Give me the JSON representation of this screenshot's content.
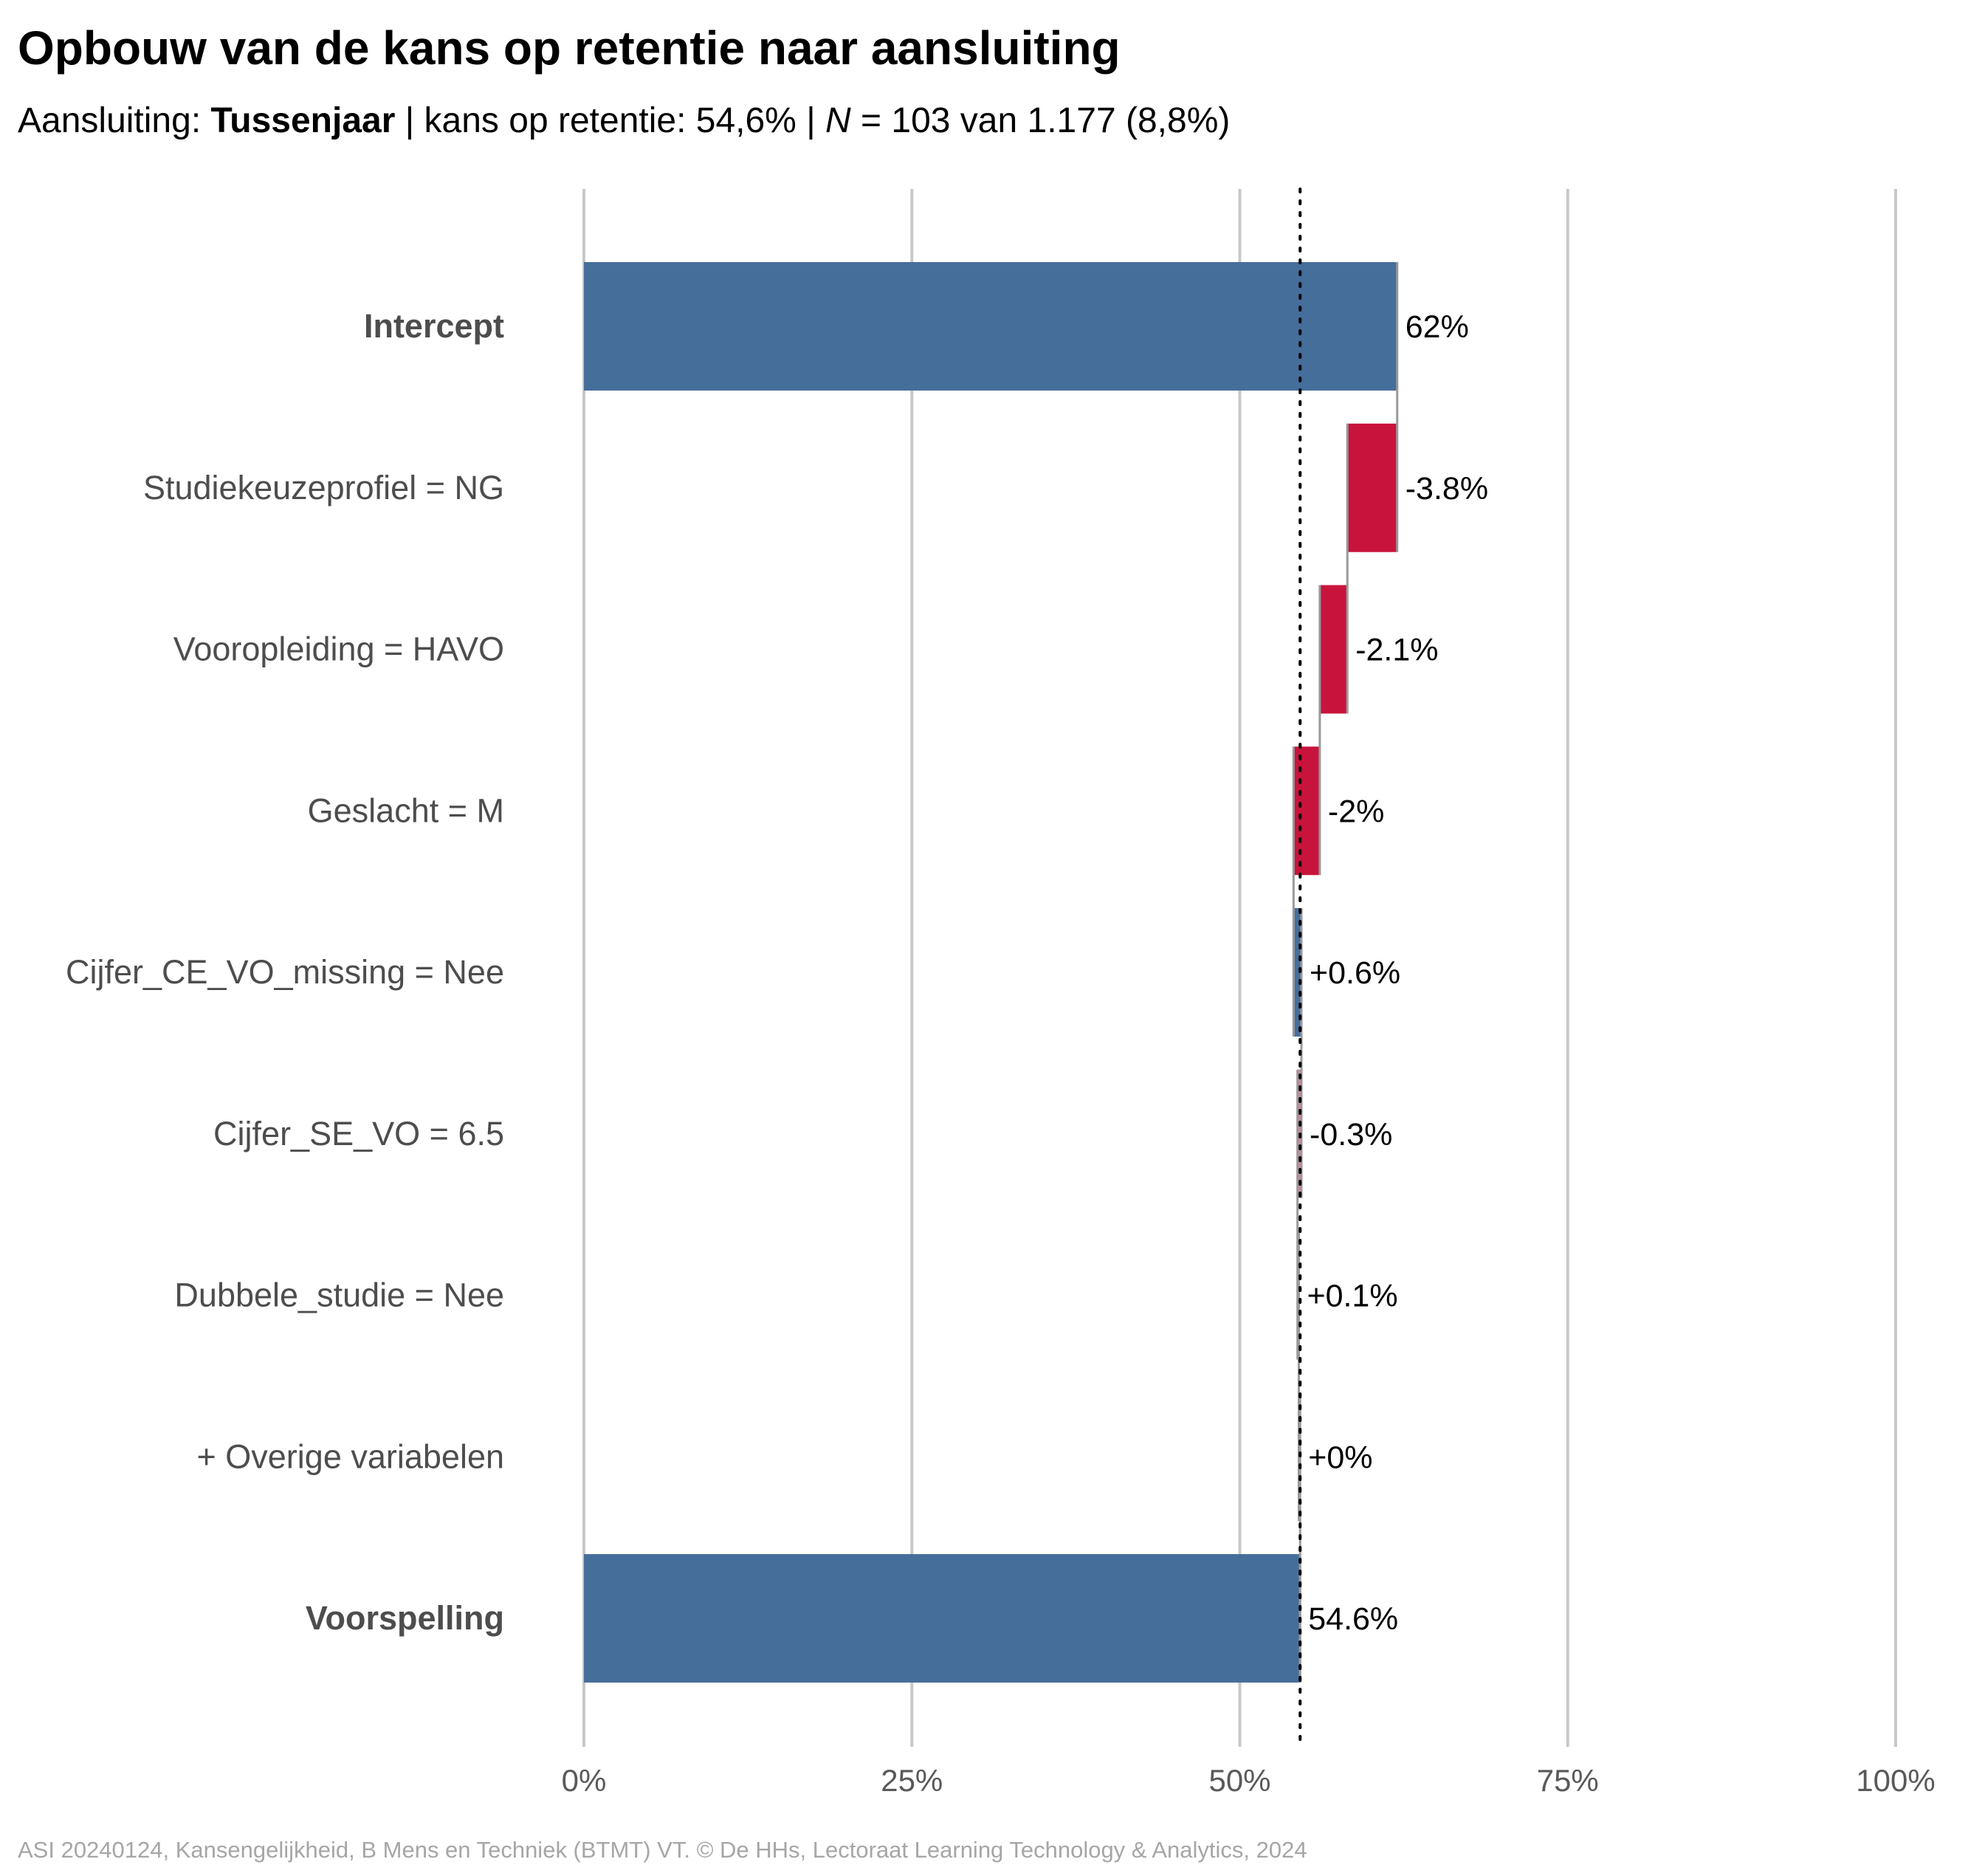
{
  "title": "Opbouw van de kans op retentie naar aansluiting",
  "subtitle": {
    "prefix": "Aansluiting: ",
    "group": "Tussenjaar",
    "mid": " | kans op retentie: 54,6% | ",
    "n_symbol": "N",
    "suffix": " = 103 van 1.177 (8,8%)"
  },
  "caption": "ASI 20240124, Kansengelijkheid, B Mens en Techniek (BTMT) VT. © De HHs, Lectoraat Learning Technology & Analytics, 2024",
  "colors": {
    "total": "#466E9B",
    "positive": "#466E9B",
    "negative": "#C8143C",
    "gridline": "#c8c8c8",
    "connector": "#999999",
    "label_text": "#4d4d4d",
    "tick_text": "#595959"
  },
  "chart_data": {
    "type": "bar",
    "subtype": "waterfall",
    "orientation": "horizontal",
    "xlim": [
      0,
      100
    ],
    "x_unit": "%",
    "ticks": [
      0,
      25,
      50,
      75,
      100
    ],
    "tick_labels": [
      "0%",
      "25%",
      "50%",
      "75%",
      "100%"
    ],
    "grid": true,
    "reference_line": {
      "value": 54.6,
      "style": "dotted"
    },
    "steps": [
      {
        "label": "Intercept",
        "kind": "total",
        "start": 0,
        "end": 62,
        "value_label": "62%",
        "bold": true
      },
      {
        "label": "Studiekeuzeprofiel = NG",
        "kind": "delta",
        "start": 62,
        "end": 58.2,
        "value_label": "-3.8%",
        "bold": false
      },
      {
        "label": "Vooropleiding = HAVO",
        "kind": "delta",
        "start": 58.2,
        "end": 56.1,
        "value_label": "-2.1%",
        "bold": false
      },
      {
        "label": "Geslacht = M",
        "kind": "delta",
        "start": 56.1,
        "end": 54.1,
        "value_label": "-2%",
        "bold": false
      },
      {
        "label": "Cijfer_CE_VO_missing = Nee",
        "kind": "delta",
        "start": 54.1,
        "end": 54.7,
        "value_label": "+0.6%",
        "bold": false
      },
      {
        "label": "Cijfer_SE_VO = 6.5",
        "kind": "delta",
        "start": 54.7,
        "end": 54.4,
        "value_label": "-0.3%",
        "bold": false
      },
      {
        "label": "Dubbele_studie = Nee",
        "kind": "delta",
        "start": 54.4,
        "end": 54.5,
        "value_label": "+0.1%",
        "bold": false
      },
      {
        "label": "+ Overige variabelen",
        "kind": "delta",
        "start": 54.5,
        "end": 54.6,
        "value_label": "+0%",
        "bold": false
      },
      {
        "label": "Voorspelling",
        "kind": "total",
        "start": 0,
        "end": 54.6,
        "value_label": "54.6%",
        "bold": true
      }
    ]
  }
}
